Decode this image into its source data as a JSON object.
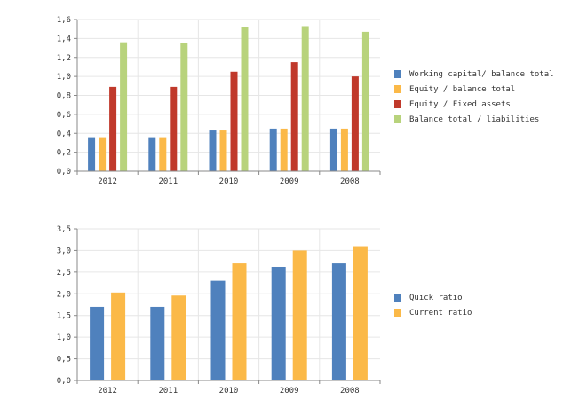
{
  "chart_data": [
    {
      "type": "bar",
      "categories": [
        "2012",
        "2011",
        "2010",
        "2009",
        "2008"
      ],
      "series": [
        {
          "name": "Working capital/ balance total",
          "color": "#4f81bd",
          "values": [
            0.35,
            0.35,
            0.43,
            0.45,
            0.45
          ]
        },
        {
          "name": "Equity / balance total",
          "color": "#fbb948",
          "values": [
            0.35,
            0.35,
            0.43,
            0.45,
            0.45
          ]
        },
        {
          "name": "Equity / Fixed assets",
          "color": "#c0392b",
          "values": [
            0.89,
            0.89,
            1.05,
            1.15,
            1.0
          ]
        },
        {
          "name": "Balance total / liabilities",
          "color": "#b8d37c",
          "values": [
            1.36,
            1.35,
            1.52,
            1.53,
            1.47
          ]
        }
      ],
      "ylim": [
        0,
        1.6
      ],
      "yticks": [
        "0,0",
        "0,2",
        "0,4",
        "0,6",
        "0,8",
        "1,0",
        "1,2",
        "1,4",
        "1,6"
      ],
      "grid": true,
      "legend_position": "right"
    },
    {
      "type": "bar",
      "categories": [
        "2012",
        "2011",
        "2010",
        "2009",
        "2008"
      ],
      "series": [
        {
          "name": "Quick ratio",
          "color": "#4f81bd",
          "values": [
            1.7,
            1.7,
            2.3,
            2.62,
            2.7
          ]
        },
        {
          "name": "Current ratio",
          "color": "#fbb948",
          "values": [
            2.03,
            1.96,
            2.7,
            3.0,
            3.1
          ]
        }
      ],
      "ylim": [
        0,
        3.5
      ],
      "yticks": [
        "0,0",
        "0,5",
        "1,0",
        "1,5",
        "2,0",
        "2,5",
        "3,0",
        "3,5"
      ],
      "grid": true,
      "legend_position": "right"
    }
  ]
}
